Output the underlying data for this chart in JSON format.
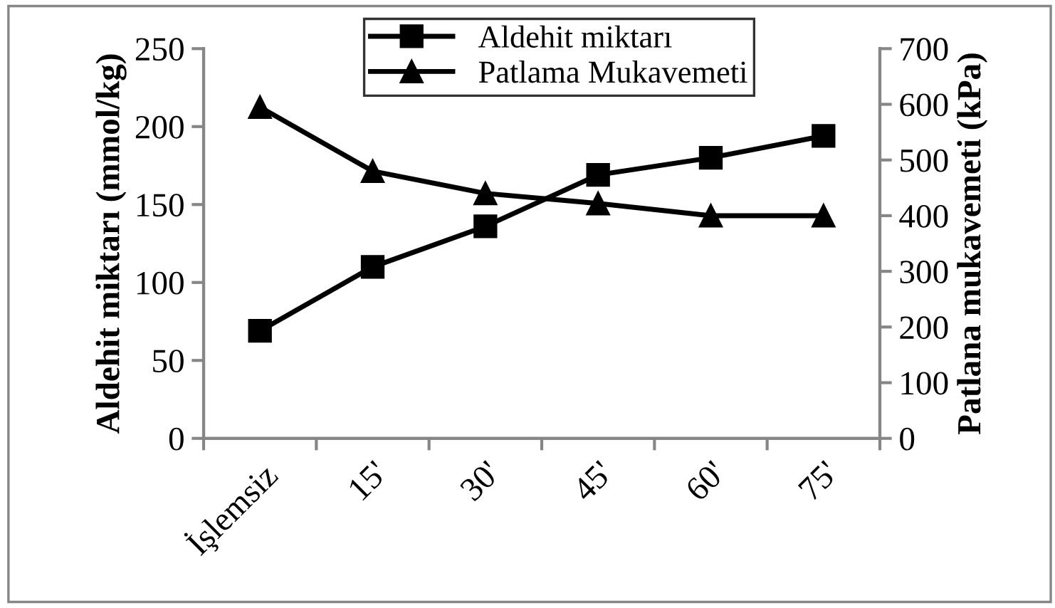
{
  "chart_data": {
    "type": "line",
    "categories": [
      "İşlemsiz",
      "15'",
      "30'",
      "45'",
      "60'",
      "75'"
    ],
    "ylabel": "Aldehit miktarı (mmol/kg)",
    "y2label": "Patlana mukavemeti (kPa)",
    "series": [
      {
        "name": "Aldehit miktarı",
        "color": "#000000",
        "marker": "square",
        "values": [
          69,
          110,
          136,
          169,
          180,
          194
        ]
      },
      {
        "name": "Patlama Mukavemeti",
        "color": "#000000",
        "marker": "triangle",
        "axis": "y2",
        "values": [
          595,
          480,
          440,
          422,
          400,
          400
        ]
      }
    ],
    "ylim": [
      0,
      250
    ],
    "yticks": [
      0,
      50,
      100,
      150,
      200,
      250
    ],
    "y2lim": [
      0,
      700
    ],
    "y2ticks": [
      0,
      100,
      200,
      300,
      400,
      500,
      600,
      700
    ],
    "grid": false,
    "legend": "top",
    "line_style": "solid"
  }
}
